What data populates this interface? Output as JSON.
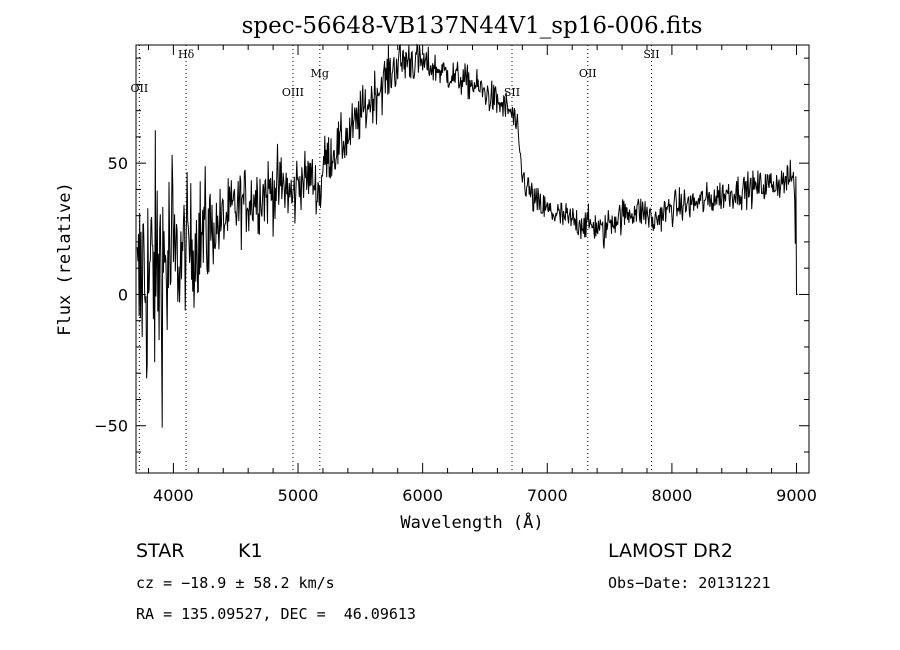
{
  "chart_data": {
    "type": "line",
    "title": "spec-56648-VB137N44V1_sp16-006.fits",
    "xlabel": "Wavelength (Å)",
    "ylabel": "Flux (relative)",
    "xlim": [
      3700,
      9100
    ],
    "ylim": [
      -68,
      95
    ],
    "xticks": [
      4000,
      5000,
      6000,
      7000,
      8000,
      9000
    ],
    "yticks": [
      -50,
      0,
      50
    ],
    "grid": false,
    "color": "#000000",
    "spectral_lines": [
      {
        "name": "OII",
        "wavelength": 3727
      },
      {
        "name": "Hδ",
        "wavelength": 4102
      },
      {
        "name": "OIII",
        "wavelength": 4959
      },
      {
        "name": "Mg",
        "wavelength": 5175
      },
      {
        "name": "SII",
        "wavelength": 6717
      },
      {
        "name": "OII",
        "wavelength": 7325
      },
      {
        "name": "SII",
        "wavelength": 7836
      }
    ],
    "series": [
      {
        "x": [
          3700,
          3750,
          3800,
          3850,
          3900,
          3950,
          4000,
          4050,
          4100,
          4150,
          4200,
          4300,
          4400,
          4500,
          4600,
          4700,
          4800,
          4900,
          4960,
          5000,
          5100,
          5180,
          5200,
          5300,
          5400,
          5500,
          5600,
          5700,
          5800,
          5900,
          6000,
          6100,
          6200,
          6300,
          6400,
          6500,
          6600,
          6700,
          6750,
          6800,
          6900,
          7000,
          7100,
          7200,
          7300,
          7400,
          7450,
          7500,
          7600,
          7700,
          7800,
          7850,
          7900,
          8000,
          8100,
          8200,
          8300,
          8400,
          8500,
          8600,
          8700,
          8800,
          8900,
          8980,
          9000
        ],
        "y": [
          -10,
          10,
          5,
          8,
          12,
          10,
          15,
          12,
          20,
          18,
          22,
          24,
          28,
          33,
          36,
          38,
          40,
          41,
          36,
          43,
          45,
          38,
          50,
          55,
          60,
          68,
          75,
          82,
          88,
          90,
          88,
          86,
          84,
          82,
          80,
          77,
          73,
          70,
          65,
          45,
          35,
          32,
          30,
          28,
          27,
          26,
          23,
          28,
          30,
          32,
          31,
          27,
          30,
          33,
          34,
          35,
          36,
          38,
          39,
          40,
          41,
          42,
          43,
          45,
          0
        ]
      }
    ]
  },
  "info": {
    "object_class": "STAR",
    "subclass": "K1",
    "cz": "cz = −18.9 ± 58.2 km/s",
    "coords": "RA = 135.09527, DEC =  46.09613",
    "survey": "LAMOST DR2",
    "obs_date": "Obs−Date: 20131221"
  }
}
